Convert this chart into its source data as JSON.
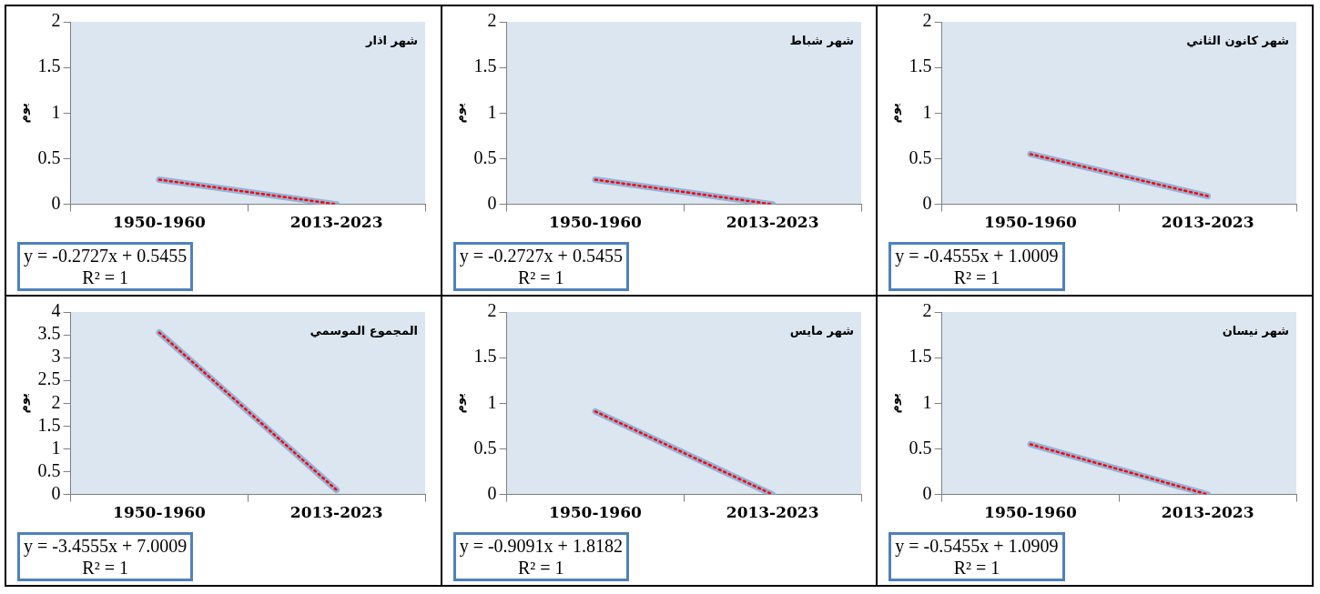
{
  "chart_data": [
    {
      "type": "line",
      "title": "شهر اذار",
      "ylabel": "يوم",
      "categories": [
        "1950-1960",
        "2013-2023"
      ],
      "ylim": [
        0,
        2
      ],
      "yticks": [
        0,
        0.5,
        1,
        1.5,
        2
      ],
      "grid": false,
      "legend": false,
      "marker": "none",
      "series": [
        {
          "color": "#95b3d7",
          "values": [
            0.27,
            0
          ]
        },
        {
          "type": "line",
          "color": "#ff0000",
          "line_style": "dotted",
          "values": [
            0.27,
            0
          ]
        }
      ],
      "annotations": [
        "y = -0.2727x + 0.5455",
        "R² = 1"
      ]
    },
    {
      "type": "line",
      "title": "شهر شباط",
      "ylabel": "يوم",
      "categories": [
        "1950-1960",
        "2013-2023"
      ],
      "ylim": [
        0,
        2
      ],
      "yticks": [
        0,
        0.5,
        1,
        1.5,
        2
      ],
      "grid": false,
      "legend": false,
      "marker": "none",
      "series": [
        {
          "color": "#95b3d7",
          "values": [
            0.27,
            0
          ]
        },
        {
          "type": "line",
          "color": "#ff0000",
          "line_style": "dotted",
          "values": [
            0.27,
            0
          ]
        }
      ],
      "annotations": [
        "y = -0.2727x + 0.5455",
        "R² = 1"
      ]
    },
    {
      "type": "line",
      "title": "شهر كانون الثاني",
      "ylabel": "يوم",
      "categories": [
        "1950-1960",
        "2013-2023"
      ],
      "ylim": [
        0,
        2
      ],
      "yticks": [
        0,
        0.5,
        1,
        1.5,
        2
      ],
      "grid": false,
      "legend": false,
      "marker": "none",
      "series": [
        {
          "color": "#95b3d7",
          "values": [
            0.55,
            0.09
          ]
        },
        {
          "type": "line",
          "color": "#ff0000",
          "line_style": "dotted",
          "values": [
            0.55,
            0.09
          ]
        }
      ],
      "annotations": [
        "y = -0.4555x + 1.0009",
        "R² = 1"
      ]
    },
    {
      "type": "line",
      "title": "المجموع الموسمي",
      "ylabel": "يوم",
      "categories": [
        "1950-1960",
        "2013-2023"
      ],
      "ylim": [
        0,
        4
      ],
      "yticks": [
        0,
        0.5,
        1,
        1.5,
        2,
        2.5,
        3,
        3.5,
        4
      ],
      "grid": false,
      "legend": false,
      "marker": "none",
      "series": [
        {
          "color": "#95b3d7",
          "values": [
            3.55,
            0.1
          ]
        },
        {
          "type": "line",
          "color": "#ff0000",
          "line_style": "dotted",
          "values": [
            3.55,
            0.1
          ]
        }
      ],
      "annotations": [
        "y = -3.4555x + 7.0009",
        "R² = 1"
      ]
    },
    {
      "type": "line",
      "title": "شهر مايس",
      "ylabel": "يوم",
      "categories": [
        "1950-1960",
        "2013-2023"
      ],
      "ylim": [
        0,
        2
      ],
      "yticks": [
        0,
        0.5,
        1,
        1.5,
        2
      ],
      "grid": false,
      "legend": false,
      "marker": "none",
      "series": [
        {
          "color": "#95b3d7",
          "values": [
            0.91,
            0
          ]
        },
        {
          "type": "line",
          "color": "#ff0000",
          "line_style": "dotted",
          "values": [
            0.91,
            0
          ]
        }
      ],
      "annotations": [
        "y = -0.9091x + 1.8182",
        "R² = 1"
      ]
    },
    {
      "type": "line",
      "title": "شهر نيسان",
      "ylabel": "يوم",
      "categories": [
        "1950-1960",
        "2013-2023"
      ],
      "ylim": [
        0,
        2
      ],
      "yticks": [
        0,
        0.5,
        1,
        1.5,
        2
      ],
      "grid": false,
      "legend": false,
      "marker": "none",
      "series": [
        {
          "color": "#95b3d7",
          "values": [
            0.55,
            0
          ]
        },
        {
          "type": "line",
          "color": "#ff0000",
          "line_style": "dotted",
          "values": [
            0.55,
            0
          ]
        }
      ],
      "annotations": [
        "y = -0.5455x + 1.0909",
        "R² = 1"
      ]
    }
  ]
}
